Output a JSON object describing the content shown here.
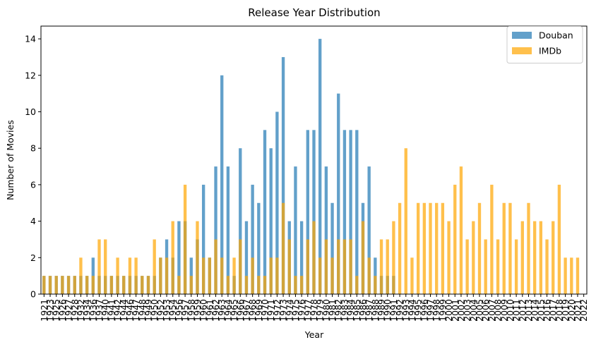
{
  "chart_data": {
    "type": "bar",
    "title": "Release Year Distribution",
    "xlabel": "Year",
    "ylabel": "Number of Movies",
    "ylim": [
      0,
      14.7
    ],
    "yticks": [
      0,
      2,
      4,
      6,
      8,
      10,
      12,
      14
    ],
    "grid": false,
    "legend_position": "top-right",
    "categories": [
      "1921",
      "1923",
      "1925",
      "1926",
      "1927",
      "1928",
      "1932",
      "1934",
      "1936",
      "1937",
      "1940",
      "1941",
      "1942",
      "1944",
      "1946",
      "1947",
      "1948",
      "1949",
      "1950",
      "1952",
      "1953",
      "1954",
      "1956",
      "1957",
      "1958",
      "1959",
      "1960",
      "1961",
      "1962",
      "1963",
      "1964",
      "1965",
      "1966",
      "1967",
      "1968",
      "1969",
      "1970",
      "1971",
      "1972",
      "1973",
      "1974",
      "1975",
      "1976",
      "1977",
      "1978",
      "1979",
      "1980",
      "1981",
      "1982",
      "1983",
      "1984",
      "1985",
      "1986",
      "1987",
      "1988",
      "1989",
      "1990",
      "1991",
      "1992",
      "1993",
      "1994",
      "1995",
      "1996",
      "1997",
      "1998",
      "1999",
      "2000",
      "2001",
      "2002",
      "2003",
      "2004",
      "2005",
      "2006",
      "2007",
      "2008",
      "2009",
      "2010",
      "2011",
      "2012",
      "2013",
      "2014",
      "2015",
      "2016",
      "2017",
      "2018",
      "2019",
      "2020",
      "2021",
      "2022"
    ],
    "series": [
      {
        "name": "Douban",
        "color": "#1f77b4",
        "opacity": 0.7,
        "values": [
          1,
          1,
          1,
          1,
          1,
          1,
          1,
          1,
          2,
          1,
          1,
          1,
          1,
          1,
          1,
          1,
          1,
          1,
          1,
          2,
          3,
          2,
          4,
          4,
          2,
          3,
          6,
          2,
          7,
          12,
          7,
          1,
          8,
          4,
          6,
          5,
          9,
          8,
          10,
          13,
          4,
          7,
          4,
          9,
          9,
          14,
          7,
          5,
          11,
          9,
          9,
          9,
          5,
          7,
          2,
          1,
          1,
          1,
          0,
          0,
          0,
          0,
          0,
          0,
          0,
          0,
          0,
          0,
          0,
          0,
          0,
          0,
          0,
          0,
          0,
          0,
          0,
          0,
          0,
          0,
          0,
          0,
          0,
          0,
          0,
          0,
          0,
          0,
          0
        ]
      },
      {
        "name": "IMDb",
        "color": "#ffa500",
        "opacity": 0.7,
        "values": [
          1,
          1,
          1,
          1,
          1,
          1,
          2,
          1,
          1,
          3,
          3,
          1,
          2,
          1,
          2,
          2,
          1,
          1,
          3,
          2,
          2,
          4,
          1,
          6,
          1,
          4,
          2,
          2,
          3,
          2,
          1,
          2,
          3,
          1,
          2,
          1,
          1,
          2,
          2,
          5,
          3,
          1,
          1,
          3,
          4,
          2,
          3,
          2,
          3,
          3,
          3,
          1,
          4,
          2,
          1,
          3,
          3,
          4,
          5,
          8,
          2,
          5,
          5,
          5,
          5,
          5,
          4,
          6,
          7,
          3,
          4,
          5,
          3,
          6,
          3,
          5,
          5,
          3,
          4,
          5,
          4,
          4,
          3,
          4,
          6,
          2,
          2,
          2,
          0
        ]
      }
    ]
  }
}
